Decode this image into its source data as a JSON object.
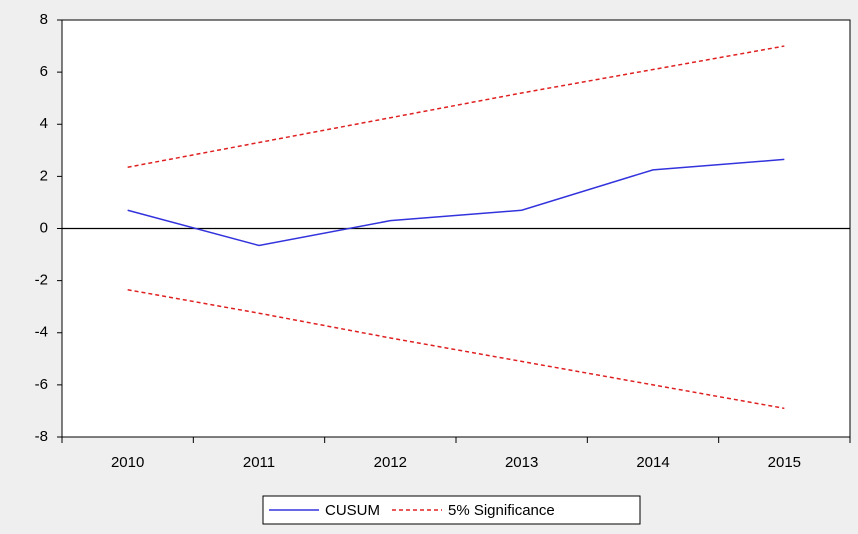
{
  "chart_data": {
    "type": "line",
    "categories": [
      "2010",
      "2011",
      "2012",
      "2013",
      "2014",
      "2015"
    ],
    "series": [
      {
        "name": "CUSUM",
        "color": "#3333dd",
        "dash": false,
        "values": [
          0.7,
          -0.65,
          0.3,
          0.7,
          2.25,
          2.65
        ]
      },
      {
        "name": "5% Significance",
        "color": "#e02020",
        "dash": true,
        "values": [
          2.35,
          3.3,
          4.25,
          5.2,
          6.1,
          7.0
        ]
      },
      {
        "color": "#e02020",
        "dash": true,
        "values": [
          -2.35,
          -3.25,
          -4.2,
          -5.1,
          -6.0,
          -6.9
        ]
      }
    ],
    "ylim": [
      -8,
      8
    ],
    "yticks": [
      -8,
      -6,
      -4,
      -2,
      0,
      2,
      4,
      6,
      8
    ],
    "zero_line": true,
    "grid": false,
    "legend": "bottom"
  }
}
